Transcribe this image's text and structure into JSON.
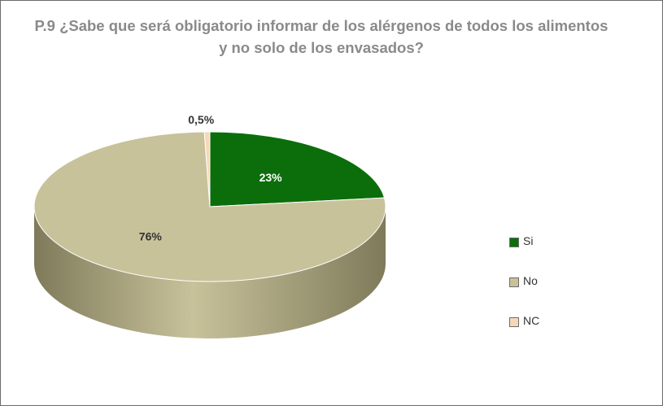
{
  "title": {
    "line1": "P.9 ¿Sabe que será obligatorio informar de los alérgenos de todos los alimentos",
    "line2": "y no solo de los envasados?"
  },
  "chart_data": {
    "type": "pie",
    "style": "3d",
    "title": "P.9 ¿Sabe que será obligatorio informar de los alérgenos de todos los alimentos y no solo de los envasados?",
    "legend_position": "right",
    "slices": [
      {
        "label": "Si",
        "value": 23,
        "display": "23%",
        "color": "#0b6e0b",
        "side_color": "#074a07",
        "label_color": "#ffffff"
      },
      {
        "label": "No",
        "value": 76,
        "display": "76%",
        "color": "#c8c29b",
        "side_color": "#7f7a5a",
        "label_color": "#333333"
      },
      {
        "label": "NC",
        "value": 0.5,
        "display": "0,5%",
        "color": "#f6d8b8",
        "side_color": "#cdb092",
        "label_color": "#333333"
      }
    ]
  }
}
